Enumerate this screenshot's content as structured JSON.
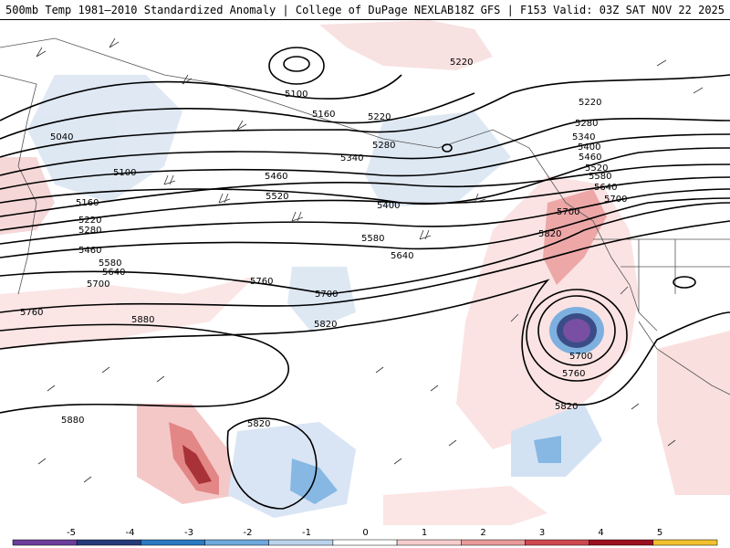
{
  "header": {
    "title": "500mb Temp 1981–2010 Standardized Anomaly | College of DuPage NEXLAB",
    "run_info": "18Z GFS | F153 Valid: 03Z SAT NOV 22 2025"
  },
  "contour_labels": [
    "5220",
    "5100",
    "5160",
    "5220",
    "5280",
    "5340",
    "5040",
    "5100",
    "5160",
    "5220",
    "5280",
    "5460",
    "5520",
    "5400",
    "5580",
    "5640",
    "5700",
    "5460",
    "5580",
    "5640",
    "5700",
    "5760",
    "5760",
    "5700",
    "5820",
    "5880",
    "5880",
    "5820",
    "5820",
    "5760",
    "5700",
    "5820",
    "5220",
    "5280",
    "5340",
    "5400",
    "5460",
    "5520",
    "5580",
    "5640",
    "5700"
  ],
  "colorbar": {
    "ticks": [
      "-5",
      "-4",
      "-3",
      "-2",
      "-1",
      "0",
      "1",
      "2",
      "3",
      "4",
      "5"
    ],
    "colors": [
      "#6a3d9a",
      "#253a7a",
      "#2b79c2",
      "#6fa8dc",
      "#bcd3ec",
      "#ffffff",
      "#f6cccc",
      "#e99a9a",
      "#d0484f",
      "#9b1020",
      "#f2c12e"
    ]
  }
}
